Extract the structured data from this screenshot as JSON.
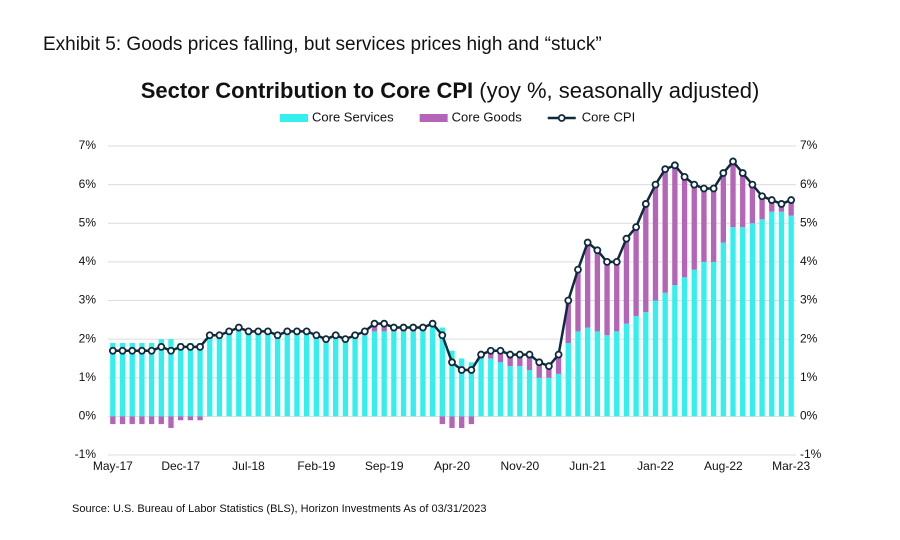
{
  "chart_data": {
    "type": "bar",
    "exhibit": "Exhibit 5: Goods prices falling, but services prices high and “stuck”",
    "title": "Sector Contribution to Core CPI",
    "subtitle": "(yoy %, seasonally adjusted)",
    "source": "Source: U.S. Bureau of Labor Statistics (BLS), Horizon Investments   As of 03/31/2023",
    "stacked": true,
    "grid": true,
    "legend": "top",
    "categories": [
      "May-17",
      null,
      null,
      null,
      null,
      null,
      null,
      "Dec-17",
      null,
      null,
      null,
      null,
      null,
      null,
      "Jul-18",
      null,
      null,
      null,
      null,
      null,
      null,
      "Feb-19",
      null,
      null,
      null,
      null,
      null,
      null,
      "Sep-19",
      null,
      null,
      null,
      null,
      null,
      null,
      "Apr-20",
      null,
      null,
      null,
      null,
      null,
      null,
      "Nov-20",
      null,
      null,
      null,
      null,
      null,
      null,
      "Jun-21",
      null,
      null,
      null,
      null,
      null,
      null,
      "Jan-22",
      null,
      null,
      null,
      null,
      null,
      null,
      "Aug-22",
      null,
      null,
      null,
      null,
      null,
      null,
      "Mar-23"
    ],
    "series": [
      {
        "name": "Core Services",
        "type": "bar",
        "color": "#33f0ee",
        "values": [
          1.9,
          1.9,
          1.9,
          1.9,
          1.9,
          2.0,
          2.0,
          1.9,
          1.9,
          1.9,
          2.1,
          2.1,
          2.2,
          2.2,
          2.2,
          2.2,
          2.2,
          2.1,
          2.2,
          2.2,
          2.2,
          2.1,
          2.0,
          2.1,
          2.0,
          2.1,
          2.1,
          2.2,
          2.2,
          2.2,
          2.2,
          2.2,
          2.3,
          2.4,
          2.3,
          1.7,
          1.5,
          1.4,
          1.5,
          1.5,
          1.4,
          1.3,
          1.3,
          1.2,
          1.0,
          1.0,
          1.1,
          1.9,
          2.2,
          2.3,
          2.2,
          2.1,
          2.2,
          2.4,
          2.6,
          2.7,
          3.0,
          3.2,
          3.4,
          3.6,
          3.8,
          4.0,
          4.0,
          4.5,
          4.9,
          4.9,
          5.0,
          5.1,
          5.3,
          5.3,
          5.2
        ]
      },
      {
        "name": "Core Goods",
        "type": "bar",
        "color": "#b565b8",
        "values": [
          -0.2,
          -0.2,
          -0.2,
          -0.2,
          -0.2,
          -0.2,
          -0.3,
          -0.1,
          -0.1,
          -0.1,
          0,
          0,
          0,
          0.1,
          0,
          0,
          0,
          0,
          0,
          0,
          0,
          0,
          0,
          0,
          0,
          0,
          0.1,
          0.2,
          0.2,
          0.1,
          0.1,
          0.1,
          0,
          0,
          -0.2,
          -0.3,
          -0.3,
          -0.2,
          0.1,
          0.2,
          0.3,
          0.3,
          0.3,
          0.4,
          0.4,
          0.3,
          0.5,
          1.1,
          1.6,
          2.2,
          2.1,
          1.9,
          1.8,
          2.2,
          2.3,
          2.8,
          3.0,
          3.2,
          3.1,
          2.6,
          2.2,
          1.9,
          1.9,
          1.8,
          1.7,
          1.4,
          1.0,
          0.6,
          0.3,
          0.2,
          0.4
        ]
      },
      {
        "name": "Core CPI",
        "type": "line",
        "color": "#0f2a3d",
        "values": [
          1.7,
          1.7,
          1.7,
          1.7,
          1.7,
          1.8,
          1.7,
          1.8,
          1.8,
          1.8,
          2.1,
          2.1,
          2.2,
          2.3,
          2.2,
          2.2,
          2.2,
          2.1,
          2.2,
          2.2,
          2.2,
          2.1,
          2.0,
          2.1,
          2.0,
          2.1,
          2.2,
          2.4,
          2.4,
          2.3,
          2.3,
          2.3,
          2.3,
          2.4,
          2.1,
          1.4,
          1.2,
          1.2,
          1.6,
          1.7,
          1.7,
          1.6,
          1.6,
          1.6,
          1.4,
          1.3,
          1.6,
          3.0,
          3.8,
          4.5,
          4.3,
          4.0,
          4.0,
          4.6,
          4.9,
          5.5,
          6.0,
          6.4,
          6.5,
          6.2,
          6.0,
          5.9,
          5.9,
          6.3,
          6.6,
          6.3,
          6.0,
          5.7,
          5.6,
          5.5,
          5.6
        ]
      }
    ],
    "ylim": [
      -1,
      7
    ],
    "yticks": [
      {
        "value": -1,
        "label": "-1%"
      },
      {
        "value": 0,
        "label": "0%"
      },
      {
        "value": 1,
        "label": "1%"
      },
      {
        "value": 2,
        "label": "2%"
      },
      {
        "value": 3,
        "label": "3%"
      },
      {
        "value": 4,
        "label": "4%"
      },
      {
        "value": 5,
        "label": "5%"
      },
      {
        "value": 6,
        "label": "6%"
      },
      {
        "value": 7,
        "label": "7%"
      }
    ],
    "y2lim": [
      -1,
      7
    ],
    "y2ticks": [
      {
        "value": -1,
        "label": "-1%"
      },
      {
        "value": 0,
        "label": "0%"
      },
      {
        "value": 1,
        "label": "1%"
      },
      {
        "value": 2,
        "label": "2%"
      },
      {
        "value": 3,
        "label": "3%"
      },
      {
        "value": 4,
        "label": "4%"
      },
      {
        "value": 5,
        "label": "5%"
      },
      {
        "value": 6,
        "label": "6%"
      },
      {
        "value": 7,
        "label": "7%"
      }
    ]
  }
}
